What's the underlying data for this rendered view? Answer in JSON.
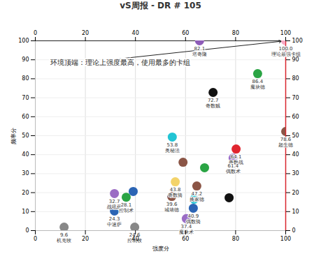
{
  "chart_data": {
    "type": "scatter",
    "title": "vS周报 - DR # 105",
    "xlabel": "强度分",
    "ylabel": "频率分",
    "annotation": "环境顶端：理论上强度最高，使用最多的卡组",
    "x": [
      65.6,
      100,
      88.8,
      71,
      100,
      54.7,
      80.2,
      79,
      59,
      67.6,
      55.9,
      64.5,
      77.4,
      54.5,
      63.4,
      63.1,
      60.3,
      31.6,
      36.3,
      39.1,
      31.6,
      39.7,
      11.5
    ],
    "y": [
      100,
      100,
      82.7,
      72.8,
      52.2,
      49.3,
      43,
      38.2,
      36,
      33.1,
      25.7,
      23.5,
      17.3,
      18,
      16.5,
      11.8,
      6.3,
      19.5,
      17.6,
      20.6,
      10.3,
      1.8,
      1.8
    ],
    "scores": [
      82.1,
      100.0,
      86.4,
      72.7,
      78.6,
      53.8,
      64.1,
      61.4,
      null,
      null,
      43.8,
      47.2,
      null,
      39.6,
      null,
      40.9,
      37.4,
      32.7,
      28.1,
      null,
      24.3,
      24.6,
      9.6
    ],
    "names": [
      "塔奇隆",
      "理论最强卡组",
      "魔块德",
      "奇数贼",
      "超生德",
      "奥秘法",
      "奇数战",
      "偶数术",
      null,
      null,
      "奇数骑",
      "换家德",
      null,
      "城墙德",
      null,
      "偶数骑",
      "魔块术",
      "战吼萨",
      "控制术",
      null,
      "中速萨",
      "控制牧",
      "机克牧"
    ],
    "colors": [
      "#8e5cb8",
      "#f6a9c4",
      "#2aa444",
      "#111111",
      "#8b5546",
      "#22c4d4",
      "#e0252f",
      "#9b6cc4",
      "#8b5546",
      "#2aa444",
      "#f3d36a",
      "#8b5546",
      "#111111",
      "#8b5546",
      "#22c4d4",
      "#2b64b4",
      "#9b6cc4",
      "#9b6cc4",
      "#2aa444",
      "#2b64b4",
      "#2b64b4",
      "#888888",
      "#888888"
    ],
    "xlim": [
      0,
      100
    ],
    "ylim": [
      0,
      100
    ],
    "xticks": [
      0,
      20,
      40,
      60,
      80,
      100
    ],
    "yticks": [
      0,
      10,
      20,
      30,
      40,
      50,
      60,
      70,
      80,
      90,
      100
    ],
    "grid": true
  }
}
